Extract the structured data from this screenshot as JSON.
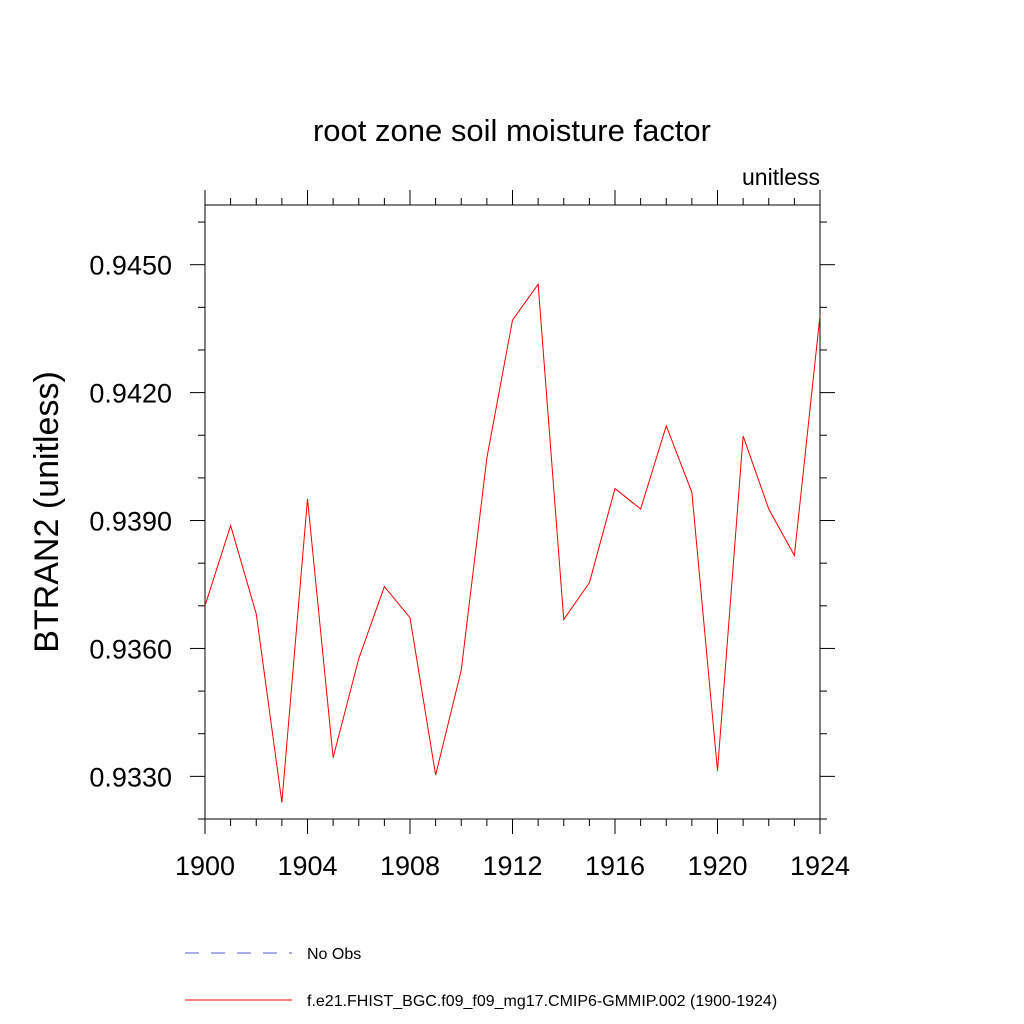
{
  "chart_data": {
    "type": "line",
    "title": "root zone soil moisture factor",
    "units_label": "unitless",
    "ylabel": "BTRAN2  (unitless)",
    "xlabel": "",
    "xlim": [
      1900,
      1924
    ],
    "ylim": [
      0.932,
      0.9464
    ],
    "x_ticks": [
      1900,
      1904,
      1908,
      1912,
      1916,
      1920,
      1924
    ],
    "x_tick_labels": [
      "1900",
      "1904",
      "1908",
      "1912",
      "1916",
      "1920",
      "1924"
    ],
    "y_ticks": [
      0.933,
      0.936,
      0.939,
      0.942,
      0.945
    ],
    "y_tick_labels": [
      "0.9330",
      "0.9360",
      "0.9390",
      "0.9420",
      "0.9450"
    ],
    "grid": false,
    "legend_position": "bottom",
    "series": [
      {
        "name": "f.e21.FHIST_BGC.f09_f09_mg17.CMIP6-GMMIP.002 (1900-1924)",
        "color": "#ff0000",
        "style": "solid",
        "x": [
          1900,
          1901,
          1902,
          1903,
          1904,
          1905,
          1906,
          1907,
          1908,
          1909,
          1910,
          1911,
          1912,
          1913,
          1914,
          1915,
          1916,
          1917,
          1918,
          1919,
          1920,
          1921,
          1922,
          1923,
          1924
        ],
        "values": [
          0.937,
          0.93888,
          0.93681,
          0.93239,
          0.93951,
          0.93344,
          0.93576,
          0.93745,
          0.93672,
          0.93303,
          0.93549,
          0.94047,
          0.9437,
          0.94454,
          0.93668,
          0.93754,
          0.93975,
          0.93927,
          0.94122,
          0.93966,
          0.93313,
          0.94098,
          0.93927,
          0.93818,
          0.94381
        ]
      },
      {
        "name": "No Obs",
        "color": "#5a5acd",
        "style": "dashed",
        "x": [],
        "values": []
      }
    ]
  }
}
